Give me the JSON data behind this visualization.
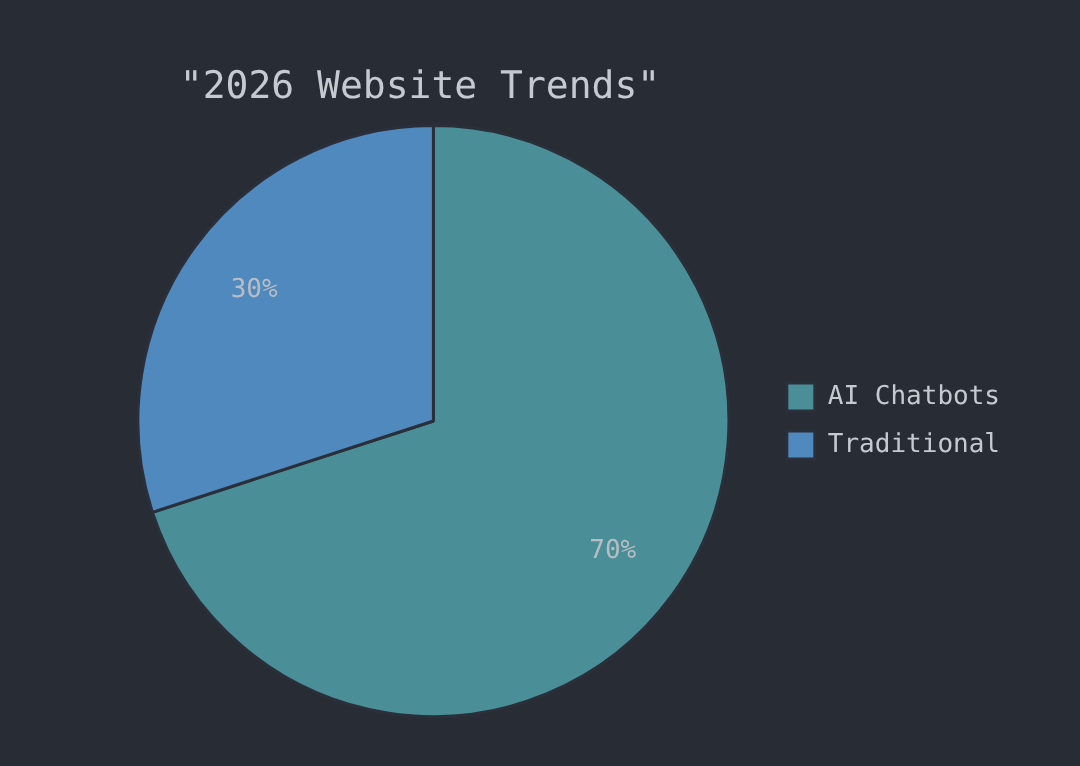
{
  "chart_data": {
    "type": "pie",
    "title": "\"2026 Website Trends\"",
    "categories": [
      "AI Chatbots",
      "Traditional"
    ],
    "values": [
      70,
      30
    ],
    "colors": [
      "#4a8f97",
      "#4f89bd"
    ],
    "value_labels": [
      "70%",
      "30%"
    ],
    "legend": "right"
  }
}
